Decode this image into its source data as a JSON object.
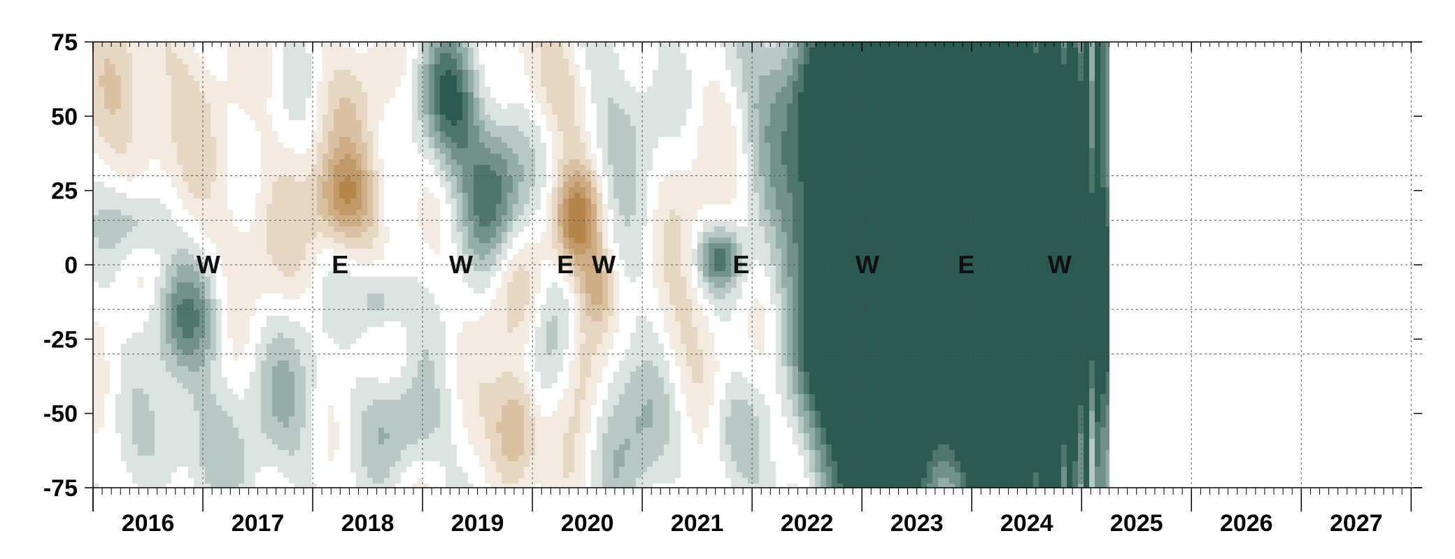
{
  "chart_data": {
    "type": "heatmap",
    "title": "",
    "xlabel": "",
    "ylabel": "",
    "x_tick_labels": [
      "2016",
      "2017",
      "2018",
      "2019",
      "2020",
      "2021",
      "2022",
      "2023",
      "2024",
      "2025",
      "2026",
      "2027"
    ],
    "y_tick_labels": [
      "75",
      "50",
      "25",
      "0",
      "-25",
      "-50",
      "-75"
    ],
    "y_ticks": [
      75,
      50,
      25,
      0,
      -25,
      -50,
      -75
    ],
    "ylim": [
      -75,
      75
    ],
    "xlim": [
      2015.5,
      2027.6
    ],
    "data_end_year": 2024.75,
    "dotted_grid_y": [
      30,
      15,
      -15,
      -30
    ],
    "grid": "dotted",
    "colormap": {
      "negative": "#a86e28",
      "neutral": "#ffffff",
      "positive": "#2a5a50"
    },
    "annotations": [
      {
        "text": "W",
        "x": 2016.55,
        "y": 0
      },
      {
        "text": "E",
        "x": 2017.75,
        "y": 0
      },
      {
        "text": "W",
        "x": 2018.85,
        "y": 0
      },
      {
        "text": "E",
        "x": 2019.8,
        "y": 0
      },
      {
        "text": "W",
        "x": 2020.15,
        "y": 0
      },
      {
        "text": "E",
        "x": 2021.4,
        "y": 0
      },
      {
        "text": "W",
        "x": 2022.55,
        "y": 0
      },
      {
        "text": "E",
        "x": 2023.45,
        "y": 0
      },
      {
        "text": "W",
        "x": 2024.3,
        "y": 0
      }
    ],
    "field_blobs": [
      {
        "x": 2016.0,
        "y": 55,
        "sx": 0.45,
        "sy": 22,
        "v": -0.35
      },
      {
        "x": 2016.35,
        "y": -18,
        "sx": 0.22,
        "sy": 14,
        "v": 0.65
      },
      {
        "x": 2015.9,
        "y": 14,
        "sx": 0.2,
        "sy": 9,
        "v": 0.45
      },
      {
        "x": 2016.4,
        "y": -60,
        "sx": 0.3,
        "sy": 14,
        "v": 0.35
      },
      {
        "x": 2017.0,
        "y": 10,
        "sx": 0.35,
        "sy": 20,
        "v": -0.25
      },
      {
        "x": 2017.25,
        "y": -45,
        "sx": 0.3,
        "sy": 20,
        "v": 0.3
      },
      {
        "x": 2017.8,
        "y": 22,
        "sx": 0.2,
        "sy": 12,
        "v": -0.85
      },
      {
        "x": 2018.1,
        "y": -12,
        "sx": 0.15,
        "sy": 8,
        "v": 0.5
      },
      {
        "x": 2017.95,
        "y": 50,
        "sx": 0.3,
        "sy": 18,
        "v": -0.25
      },
      {
        "x": 2018.35,
        "y": -55,
        "sx": 0.25,
        "sy": 12,
        "v": 0.4
      },
      {
        "x": 2018.75,
        "y": 55,
        "sx": 0.2,
        "sy": 16,
        "v": 0.9
      },
      {
        "x": 2019.15,
        "y": 25,
        "sx": 0.22,
        "sy": 18,
        "v": 0.8
      },
      {
        "x": 2019.3,
        "y": -10,
        "sx": 0.2,
        "sy": 16,
        "v": -0.35
      },
      {
        "x": 2019.35,
        "y": -55,
        "sx": 0.15,
        "sy": 14,
        "v": -0.8
      },
      {
        "x": 2019.65,
        "y": -25,
        "sx": 0.18,
        "sy": 18,
        "v": 0.4
      },
      {
        "x": 2019.7,
        "y": 60,
        "sx": 0.25,
        "sy": 15,
        "v": -0.4
      },
      {
        "x": 2019.9,
        "y": 15,
        "sx": 0.15,
        "sy": 12,
        "v": -1.0
      },
      {
        "x": 2019.95,
        "y": -30,
        "sx": 0.15,
        "sy": 22,
        "v": -0.55
      },
      {
        "x": 2020.1,
        "y": -8,
        "sx": 0.1,
        "sy": 8,
        "v": -0.45
      },
      {
        "x": 2020.35,
        "y": 50,
        "sx": 0.3,
        "sy": 20,
        "v": 0.35
      },
      {
        "x": 2020.4,
        "y": -50,
        "sx": 0.25,
        "sy": 22,
        "v": 0.5
      },
      {
        "x": 2020.95,
        "y": 40,
        "sx": 0.3,
        "sy": 25,
        "v": -0.2
      },
      {
        "x": 2021.2,
        "y": 2,
        "sx": 0.15,
        "sy": 7,
        "v": 0.75
      },
      {
        "x": 2021.3,
        "y": -55,
        "sx": 0.2,
        "sy": 12,
        "v": 0.4
      },
      {
        "x": 2020.9,
        "y": -30,
        "sx": 0.25,
        "sy": 20,
        "v": -0.3
      },
      {
        "x": 2021.75,
        "y": 60,
        "sx": 0.35,
        "sy": 20,
        "v": 0.4
      },
      {
        "x": 2021.9,
        "y": -60,
        "sx": 0.25,
        "sy": 15,
        "v": -0.2
      },
      {
        "x": 2022.4,
        "y": 10,
        "sx": 0.35,
        "sy": 40,
        "v": 1.6
      },
      {
        "x": 2022.9,
        "y": 40,
        "sx": 0.5,
        "sy": 35,
        "v": 1.8
      },
      {
        "x": 2022.7,
        "y": -50,
        "sx": 0.4,
        "sy": 30,
        "v": 1.6
      },
      {
        "x": 2023.3,
        "y": -10,
        "sx": 0.25,
        "sy": 25,
        "v": 1.0
      },
      {
        "x": 2023.45,
        "y": -5,
        "sx": 0.1,
        "sy": 12,
        "v": -0.9
      },
      {
        "x": 2023.7,
        "y": 40,
        "sx": 0.25,
        "sy": 35,
        "v": 1.4
      },
      {
        "x": 2023.7,
        "y": -50,
        "sx": 0.25,
        "sy": 30,
        "v": 1.6
      },
      {
        "x": 2024.1,
        "y": 5,
        "sx": 0.25,
        "sy": 50,
        "v": 1.2
      },
      {
        "x": 2024.5,
        "y": 0,
        "sx": 0.25,
        "sy": 60,
        "v": 0.9
      }
    ]
  }
}
